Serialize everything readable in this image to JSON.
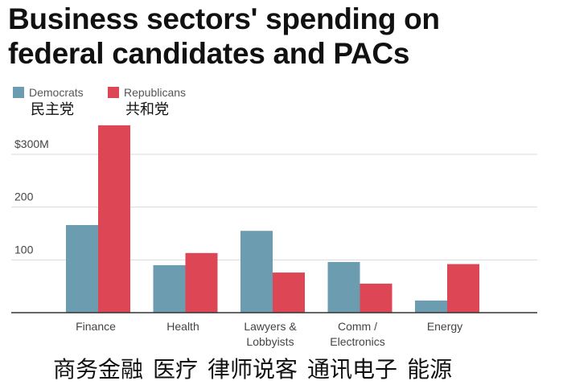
{
  "title_line1": "Business sectors' spending on",
  "title_line2": "federal candidates and PACs",
  "legend": [
    {
      "name": "Democrats",
      "cn": "民主党",
      "color": "#6b9cb0"
    },
    {
      "name": "Republicans",
      "cn": "共和党",
      "color": "#dd4755"
    }
  ],
  "bottom_cn": [
    "商务金融",
    "医疗",
    "律师说客",
    "通讯电子",
    "能源"
  ],
  "chart_data": {
    "type": "bar",
    "title": "Business sectors' spending on federal candidates and PACs",
    "categories": [
      "Finance",
      "Health",
      "Lawyers & Lobbyists",
      "Comm / Electronics",
      "Energy"
    ],
    "category_lines": [
      [
        "Finance"
      ],
      [
        "Health"
      ],
      [
        "Lawyers &",
        "Lobbyists"
      ],
      [
        "Comm /",
        "Electronics"
      ],
      [
        "Energy"
      ]
    ],
    "series": [
      {
        "name": "Democrats",
        "values": [
          166,
          90,
          155,
          96,
          23
        ],
        "color": "#6b9cb0"
      },
      {
        "name": "Republicans",
        "values": [
          355,
          113,
          76,
          55,
          92
        ],
        "color": "#dd4755"
      }
    ],
    "yticks": [
      100,
      200,
      300
    ],
    "ytick_labels": [
      "100",
      "200",
      "$300M"
    ],
    "ylim": [
      0,
      360
    ],
    "grid": true,
    "legend_position": "top-left"
  }
}
